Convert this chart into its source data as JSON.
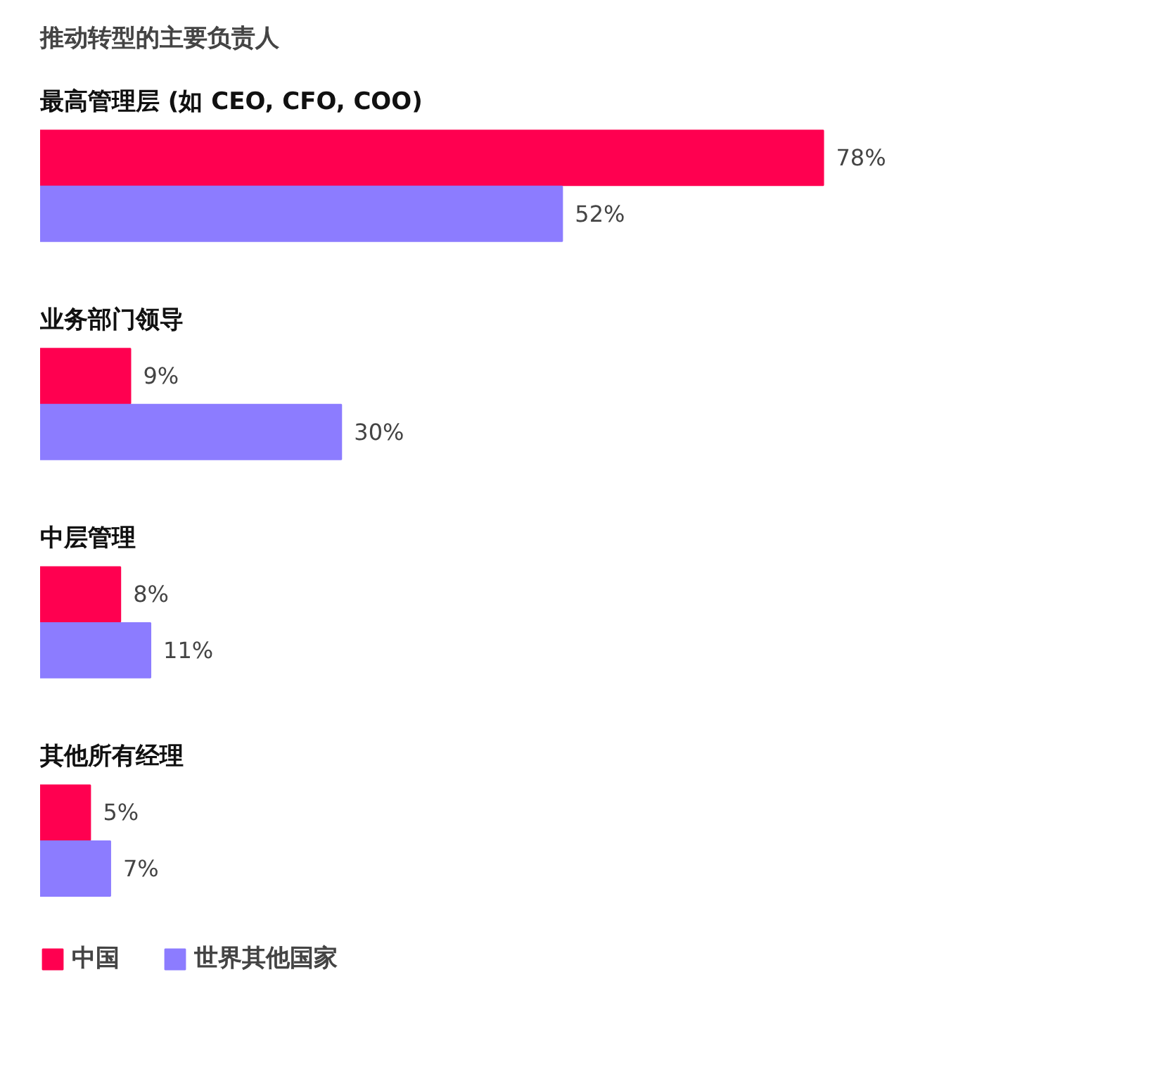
{
  "chart_data": {
    "type": "bar",
    "orientation": "horizontal",
    "title": "推动转型的主要负责人",
    "categories": [
      "最高管理层 (如 CEO, CFO, COO)",
      "业务部门领导",
      "中层管理",
      "其他所有经理"
    ],
    "series": [
      {
        "name": "中国",
        "color": "#ff0050",
        "values": [
          78,
          9,
          8,
          5
        ],
        "value_labels": [
          "78%",
          "9%",
          "8%",
          "5%"
        ]
      },
      {
        "name": "世界其他国家",
        "color": "#8c7cff",
        "values": [
          52,
          30,
          11,
          7
        ],
        "value_labels": [
          "52%",
          "30%",
          "11%",
          "7%"
        ]
      }
    ],
    "legend": "bottom",
    "grid": false,
    "tick_labels": false
  }
}
